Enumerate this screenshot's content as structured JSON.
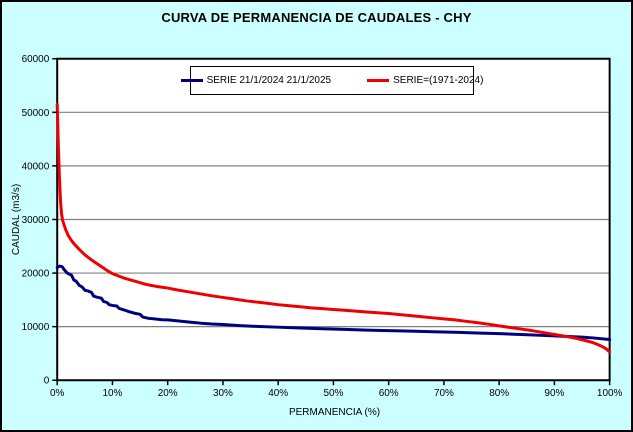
{
  "window": {
    "background_color": "#CCFFFF",
    "border_color": "#000000"
  },
  "chart_data": {
    "type": "line",
    "title": "CURVA DE PERMANENCIA DE CAUDALES - CHY",
    "xlabel": "PERMANENCIA (%)",
    "ylabel": "CAUDAL (m3/s)",
    "xlim": [
      0,
      100
    ],
    "ylim": [
      0,
      60000
    ],
    "grid": "horizontal-only",
    "gridline_color": "#808080",
    "plot_background": "#FFFFFF",
    "legend_position": "top-center-inside",
    "x_tick_values": [
      0,
      10,
      20,
      30,
      40,
      50,
      60,
      70,
      80,
      90,
      100
    ],
    "x_tick_labels": [
      "0%",
      "10%",
      "20%",
      "30%",
      "40%",
      "50%",
      "60%",
      "70%",
      "80%",
      "90%",
      "100%"
    ],
    "y_tick_values": [
      0,
      10000,
      20000,
      30000,
      40000,
      50000,
      60000
    ],
    "y_tick_labels": [
      "0",
      "10000",
      "20000",
      "30000",
      "40000",
      "50000",
      "60000"
    ],
    "series": [
      {
        "name": "SERIE 21/1/2024 21/1/2025",
        "color": "#000080",
        "points": [
          [
            0,
            21000
          ],
          [
            0.4,
            21300
          ],
          [
            0.9,
            21200
          ],
          [
            1.3,
            20600
          ],
          [
            1.8,
            20000
          ],
          [
            2.2,
            19800
          ],
          [
            2.6,
            19600
          ],
          [
            3,
            18700
          ],
          [
            3.4,
            18500
          ],
          [
            4,
            17700
          ],
          [
            4.5,
            17400
          ],
          [
            5,
            16800
          ],
          [
            5.6,
            16650
          ],
          [
            6.2,
            16400
          ],
          [
            6.6,
            15700
          ],
          [
            7.2,
            15500
          ],
          [
            8,
            15300
          ],
          [
            8.4,
            14700
          ],
          [
            9,
            14500
          ],
          [
            9.4,
            14100
          ],
          [
            10,
            13950
          ],
          [
            10.8,
            13850
          ],
          [
            11.2,
            13400
          ],
          [
            12,
            13150
          ],
          [
            13,
            12800
          ],
          [
            14,
            12500
          ],
          [
            15,
            12300
          ],
          [
            15.5,
            11800
          ],
          [
            16.5,
            11550
          ],
          [
            18,
            11400
          ],
          [
            19,
            11300
          ],
          [
            20,
            11250
          ],
          [
            22,
            11050
          ],
          [
            24,
            10850
          ],
          [
            26,
            10650
          ],
          [
            28,
            10500
          ],
          [
            30,
            10400
          ],
          [
            33,
            10200
          ],
          [
            36,
            10050
          ],
          [
            40,
            9900
          ],
          [
            44,
            9750
          ],
          [
            48,
            9600
          ],
          [
            52,
            9500
          ],
          [
            56,
            9350
          ],
          [
            60,
            9250
          ],
          [
            64,
            9150
          ],
          [
            68,
            9050
          ],
          [
            72,
            8950
          ],
          [
            76,
            8800
          ],
          [
            80,
            8700
          ],
          [
            84,
            8550
          ],
          [
            88,
            8350
          ],
          [
            92,
            8200
          ],
          [
            95,
            8050
          ],
          [
            97,
            7900
          ],
          [
            100,
            7600
          ]
        ]
      },
      {
        "name": "SERIE=(1971-2024)",
        "color": "#EE0000",
        "points": [
          [
            0,
            51500
          ],
          [
            0.2,
            44000
          ],
          [
            0.4,
            38000
          ],
          [
            0.6,
            33500
          ],
          [
            0.8,
            31000
          ],
          [
            1,
            29800
          ],
          [
            1.5,
            28200
          ],
          [
            2,
            27000
          ],
          [
            2.5,
            26200
          ],
          [
            3,
            25500
          ],
          [
            4,
            24400
          ],
          [
            5,
            23400
          ],
          [
            6,
            22600
          ],
          [
            7,
            21900
          ],
          [
            8,
            21200
          ],
          [
            9,
            20500
          ],
          [
            10,
            19900
          ],
          [
            11,
            19500
          ],
          [
            12,
            19100
          ],
          [
            13,
            18800
          ],
          [
            14,
            18500
          ],
          [
            15,
            18200
          ],
          [
            16,
            17900
          ],
          [
            17,
            17700
          ],
          [
            18,
            17500
          ],
          [
            19,
            17350
          ],
          [
            20,
            17200
          ],
          [
            22,
            16800
          ],
          [
            24,
            16450
          ],
          [
            26,
            16100
          ],
          [
            28,
            15750
          ],
          [
            30,
            15450
          ],
          [
            32,
            15150
          ],
          [
            34,
            14850
          ],
          [
            36,
            14600
          ],
          [
            38,
            14350
          ],
          [
            40,
            14100
          ],
          [
            42,
            13900
          ],
          [
            44,
            13700
          ],
          [
            46,
            13500
          ],
          [
            48,
            13350
          ],
          [
            50,
            13200
          ],
          [
            52,
            13050
          ],
          [
            54,
            12900
          ],
          [
            56,
            12750
          ],
          [
            58,
            12600
          ],
          [
            60,
            12450
          ],
          [
            62,
            12250
          ],
          [
            64,
            12050
          ],
          [
            66,
            11850
          ],
          [
            68,
            11650
          ],
          [
            70,
            11450
          ],
          [
            72,
            11250
          ],
          [
            74,
            11000
          ],
          [
            76,
            10750
          ],
          [
            78,
            10450
          ],
          [
            80,
            10150
          ],
          [
            82,
            9850
          ],
          [
            84,
            9550
          ],
          [
            86,
            9250
          ],
          [
            88,
            8900
          ],
          [
            90,
            8550
          ],
          [
            92,
            8200
          ],
          [
            94,
            7800
          ],
          [
            95,
            7550
          ],
          [
            96,
            7300
          ],
          [
            97,
            7000
          ],
          [
            98,
            6600
          ],
          [
            99,
            6100
          ],
          [
            99.5,
            5750
          ],
          [
            100,
            5300
          ]
        ]
      }
    ]
  }
}
